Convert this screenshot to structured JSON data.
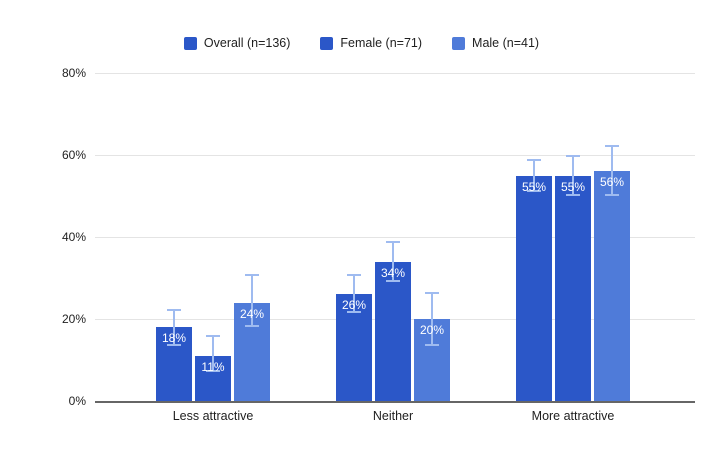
{
  "chart_data": {
    "type": "bar",
    "categories": [
      "Less attractive",
      "Neither",
      "More attractive"
    ],
    "series": [
      {
        "name": "Overall (n=136)",
        "color": "#2b57c8",
        "values": [
          18,
          26,
          55
        ],
        "labels": [
          "18%",
          "26%",
          "55%"
        ],
        "error_low": [
          13.5,
          21.5,
          51
        ],
        "error_high": [
          22.5,
          31,
          59
        ]
      },
      {
        "name": "Female (n=71)",
        "color": "#2b57c8",
        "values": [
          11,
          34,
          55
        ],
        "labels": [
          "11%",
          "34%",
          "55%"
        ],
        "error_low": [
          7,
          29,
          50
        ],
        "error_high": [
          16,
          39,
          60
        ]
      },
      {
        "name": "Male (n=41)",
        "color": "#4f7bd9",
        "values": [
          24,
          20,
          56
        ],
        "labels": [
          "24%",
          "20%",
          "56%"
        ],
        "error_low": [
          18,
          13.5,
          50
        ],
        "error_high": [
          31,
          26.5,
          62.5
        ]
      }
    ],
    "y_ticks": [
      "0%",
      "20%",
      "40%",
      "60%",
      "80%"
    ],
    "ylim": [
      0,
      80
    ],
    "grid": true,
    "legend_position": "top",
    "error_bar_color": "#9fbbf0",
    "bar_label_color": "#ffffff",
    "axis_line_color": "#666666",
    "gridline_color": "#e4e4e4"
  }
}
